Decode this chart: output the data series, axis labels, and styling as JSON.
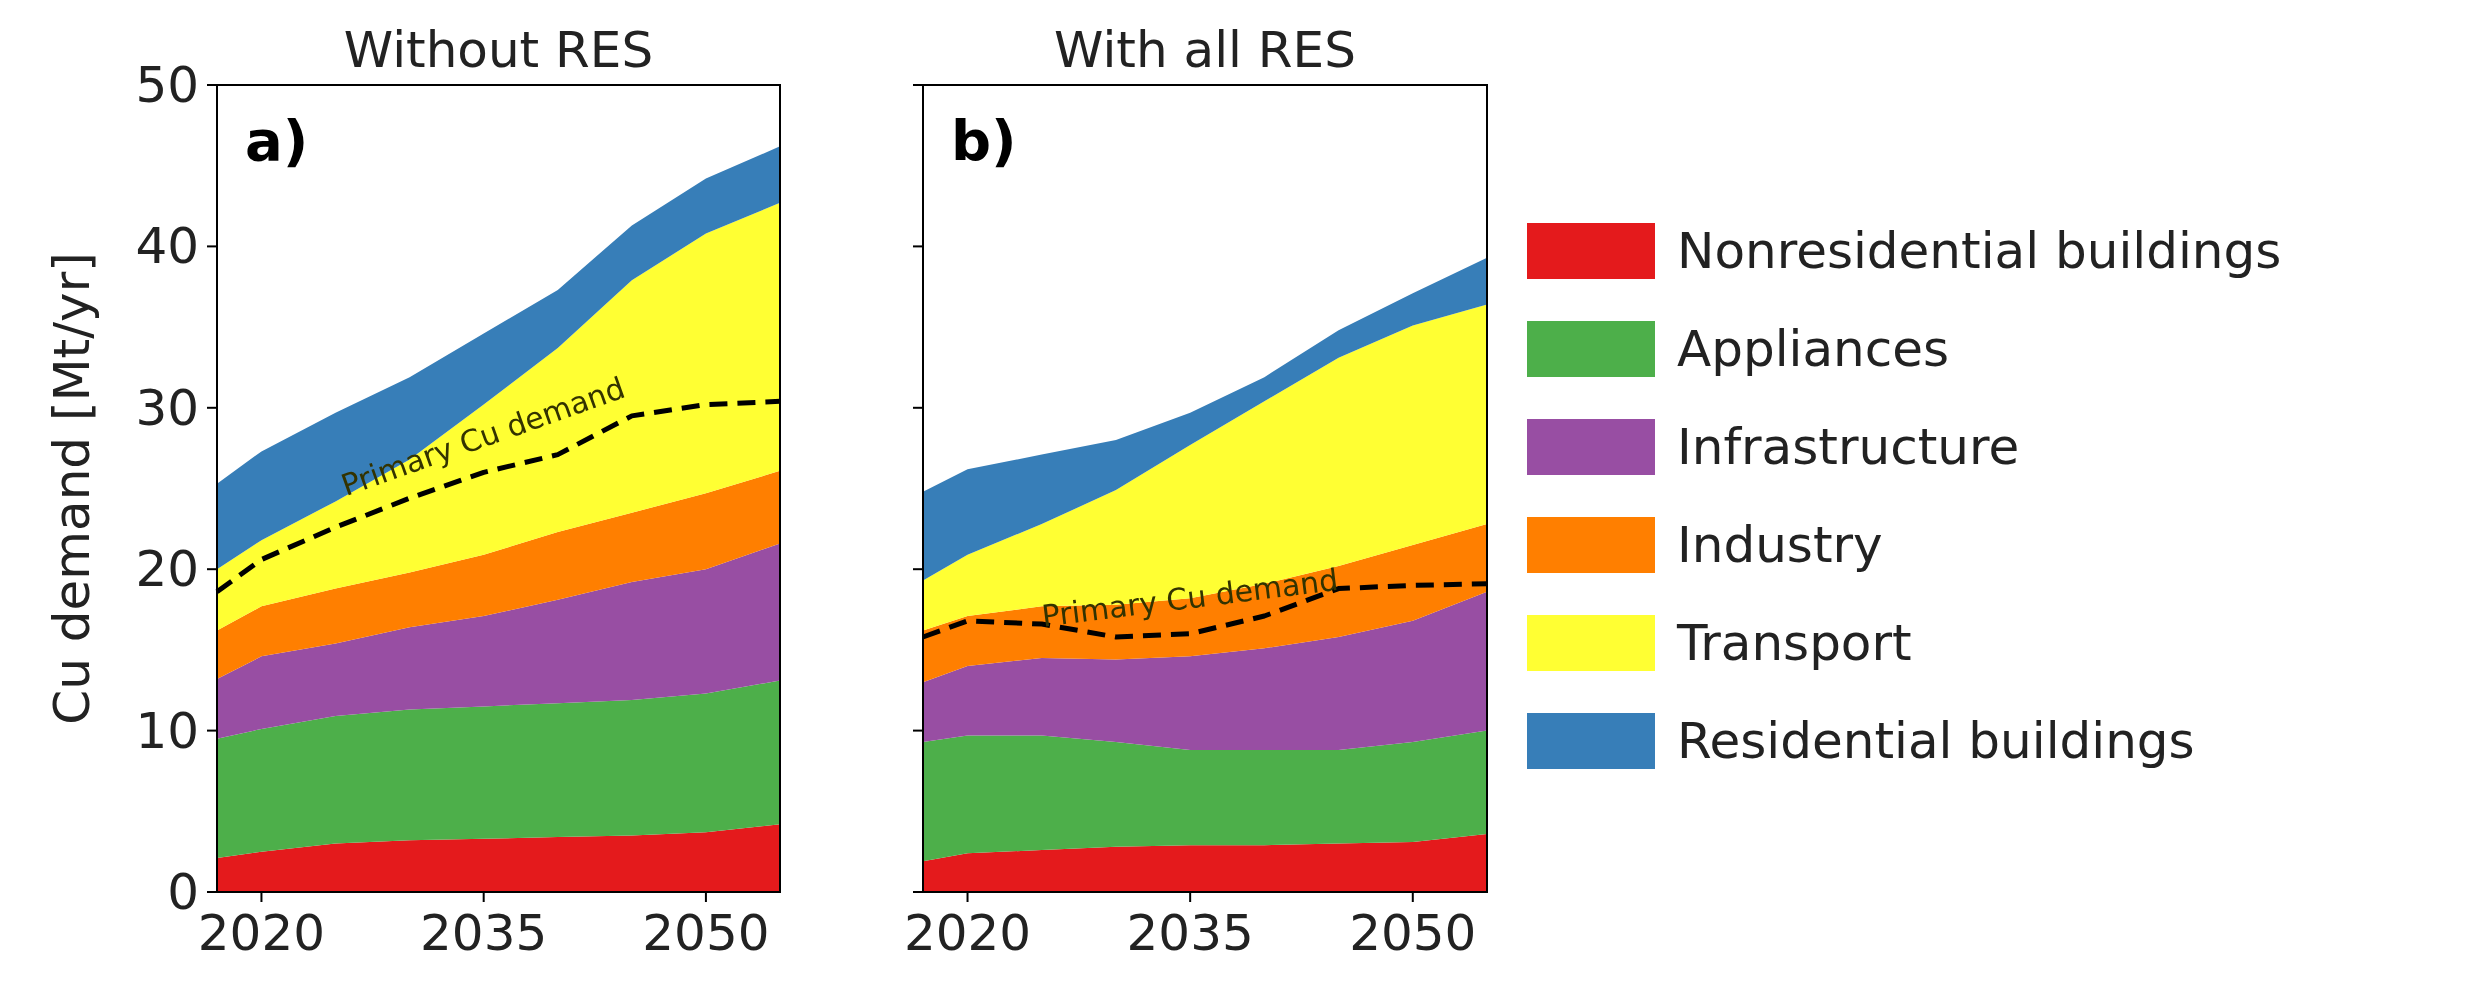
{
  "chart_data": [
    {
      "type": "area",
      "title": "Without RES",
      "ylabel": "Cu demand [Mt/yr]",
      "stacked": true,
      "x": [
        2017,
        2020,
        2025,
        2030,
        2035,
        2040,
        2045,
        2050,
        2055
      ],
      "xlim": [
        2017,
        2055
      ],
      "xticks": [
        2020,
        2035,
        2050
      ],
      "ylim": [
        0,
        50
      ],
      "yticks": [
        0,
        10,
        20,
        30,
        40,
        50
      ],
      "series": [
        {
          "color": "#e41a1c",
          "values": [
            2.1,
            2.5,
            3.0,
            3.2,
            3.3,
            3.4,
            3.5,
            3.7,
            4.2
          ]
        },
        {
          "color": "#4daf4a",
          "values": [
            7.4,
            7.6,
            7.9,
            8.1,
            8.2,
            8.3,
            8.4,
            8.6,
            8.9
          ]
        },
        {
          "color": "#984ea3",
          "values": [
            3.7,
            4.5,
            4.5,
            5.1,
            5.6,
            6.4,
            7.3,
            7.7,
            8.5
          ]
        },
        {
          "color": "#ff7f00",
          "values": [
            3.0,
            3.1,
            3.4,
            3.4,
            3.8,
            4.2,
            4.3,
            4.7,
            4.5
          ]
        },
        {
          "color": "#ffff33",
          "values": [
            3.8,
            4.1,
            5.4,
            7.0,
            9.3,
            11.4,
            14.4,
            16.1,
            16.6
          ]
        },
        {
          "color": "#377eb8",
          "values": [
            5.3,
            5.5,
            5.5,
            5.1,
            4.4,
            3.6,
            3.4,
            3.4,
            3.5
          ]
        },
        {
          "type": "line",
          "line_style": "dashed",
          "color": "#000000",
          "values": [
            18.6,
            20.6,
            22.6,
            24.4,
            26.0,
            27.1,
            29.5,
            30.2,
            30.4
          ]
        }
      ],
      "annotations": [
        "a)",
        {
          "text": "Primary Cu demand",
          "x": 2035,
          "y": 26.0
        }
      ]
    },
    {
      "type": "area",
      "title": "With all RES",
      "stacked": true,
      "tick_labels": "x",
      "legend": "right",
      "x": [
        2017,
        2020,
        2025,
        2030,
        2035,
        2040,
        2045,
        2050,
        2055
      ],
      "xlim": [
        2017,
        2055
      ],
      "xticks": [
        2020,
        2035,
        2050
      ],
      "ylim": [
        0,
        50
      ],
      "yticks": [
        0,
        10,
        20,
        30,
        40,
        50
      ],
      "series": [
        {
          "name": "Nonresidential buildings",
          "color": "#e41a1c",
          "values": [
            1.9,
            2.4,
            2.6,
            2.8,
            2.9,
            2.9,
            3.0,
            3.1,
            3.6
          ]
        },
        {
          "name": "Appliances",
          "color": "#4daf4a",
          "values": [
            7.4,
            7.3,
            7.1,
            6.5,
            5.9,
            5.9,
            5.8,
            6.2,
            6.4
          ]
        },
        {
          "name": "Infrastructure",
          "color": "#984ea3",
          "values": [
            3.7,
            4.3,
            4.8,
            5.1,
            5.8,
            6.3,
            7.0,
            7.5,
            8.6
          ]
        },
        {
          "name": "Industry",
          "color": "#ff7f00",
          "values": [
            3.2,
            3.1,
            3.2,
            3.4,
            3.6,
            4.0,
            4.4,
            4.7,
            4.2
          ]
        },
        {
          "name": "Transport",
          "color": "#ffff33",
          "values": [
            3.1,
            3.8,
            5.1,
            7.1,
            9.5,
            11.3,
            12.9,
            13.6,
            13.6
          ]
        },
        {
          "name": "Residential buildings",
          "color": "#377eb8",
          "values": [
            5.5,
            5.3,
            4.3,
            3.1,
            2.0,
            1.5,
            1.7,
            2.0,
            2.9
          ]
        },
        {
          "type": "line",
          "line_style": "dashed",
          "color": "#000000",
          "values": [
            15.8,
            16.8,
            16.6,
            15.8,
            16.0,
            17.1,
            18.8,
            19.0,
            19.1
          ]
        }
      ],
      "annotations": [
        "b)",
        {
          "text": "Primary Cu demand",
          "x": 2035,
          "y": 16.0
        }
      ]
    }
  ]
}
